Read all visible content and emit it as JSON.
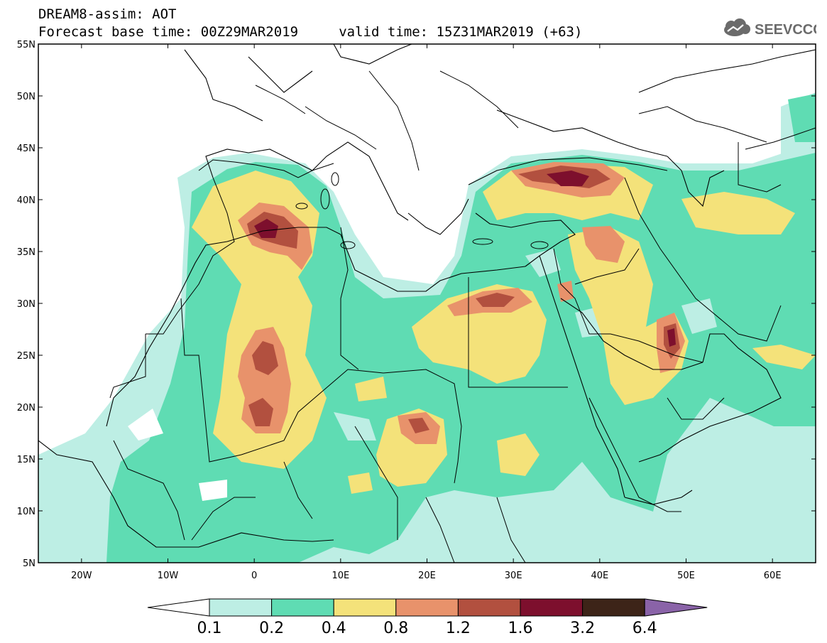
{
  "header": {
    "line1": "DREAM8-assim: AOT",
    "line2": "Forecast base time: 00Z29MAR2019     valid time: 15Z31MAR2019 (+63)"
  },
  "logo": {
    "text": "SEEVCCC",
    "icon": "cloud-icon",
    "color": "#6b6b6b"
  },
  "map": {
    "lon_range": [
      -25,
      65
    ],
    "lat_range": [
      5,
      55
    ],
    "lat_ticks": [
      "5N",
      "10N",
      "15N",
      "20N",
      "25N",
      "30N",
      "35N",
      "40N",
      "45N",
      "50N",
      "55N"
    ],
    "lon_ticks": [
      "20W",
      "10W",
      "0",
      "10E",
      "20E",
      "30E",
      "40E",
      "50E",
      "60E"
    ]
  },
  "colorbar": {
    "labels": [
      "0.1",
      "0.2",
      "0.4",
      "0.8",
      "1.2",
      "1.6",
      "3.2",
      "6.4"
    ],
    "colors": {
      "under": "#ffffff",
      "bins": [
        "#bdeee4",
        "#5fdcb3",
        "#f4e27a",
        "#e8926b",
        "#b2503f",
        "#7d0f2d",
        "#3d2418"
      ],
      "over": "#8a63a8"
    }
  }
}
